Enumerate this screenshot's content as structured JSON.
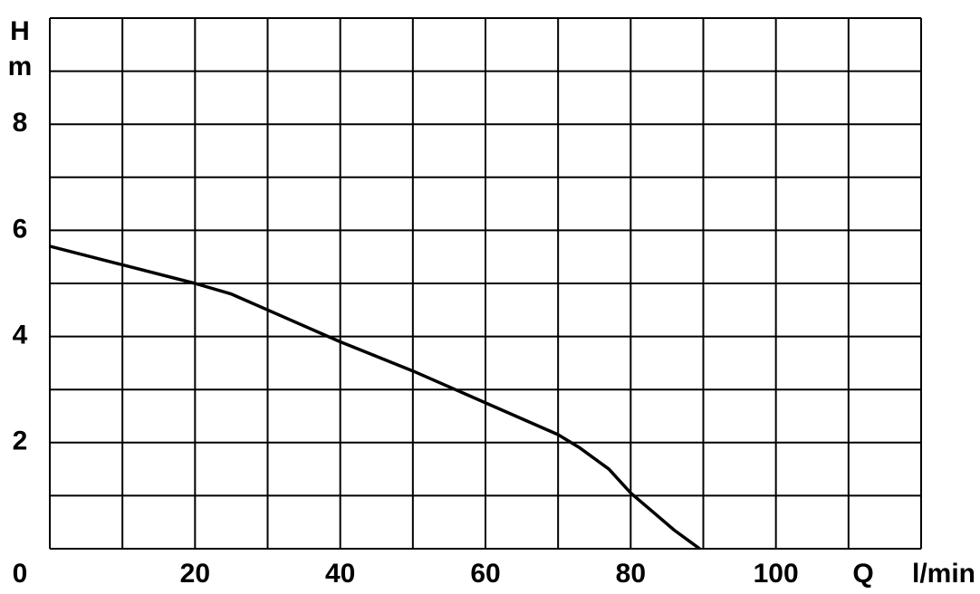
{
  "chart_data": {
    "type": "line",
    "ylabel": "H",
    "yunit": "m",
    "xlabel": "Q",
    "xunit": "l/min",
    "x": [
      0,
      10,
      20,
      25,
      30,
      40,
      50,
      60,
      70,
      73,
      77,
      80,
      83,
      86,
      89.5
    ],
    "series": [
      {
        "color": "#000000",
        "values": [
          5.7,
          5.35,
          5.0,
          4.8,
          4.5,
          3.9,
          3.35,
          2.75,
          2.15,
          1.9,
          1.5,
          1.05,
          0.7,
          0.35,
          0
        ]
      }
    ],
    "xlim": [
      0,
      120
    ],
    "ylim": [
      0,
      10
    ],
    "xticks": [
      0,
      20,
      40,
      60,
      80,
      100
    ],
    "yticks": [
      2,
      4,
      6,
      8
    ],
    "xgrid": [
      0,
      10,
      20,
      30,
      40,
      50,
      60,
      70,
      80,
      90,
      100,
      110,
      120
    ],
    "ygrid": [
      0,
      1,
      2,
      3,
      4,
      5,
      6,
      7,
      8,
      9,
      10
    ],
    "grid": true
  }
}
